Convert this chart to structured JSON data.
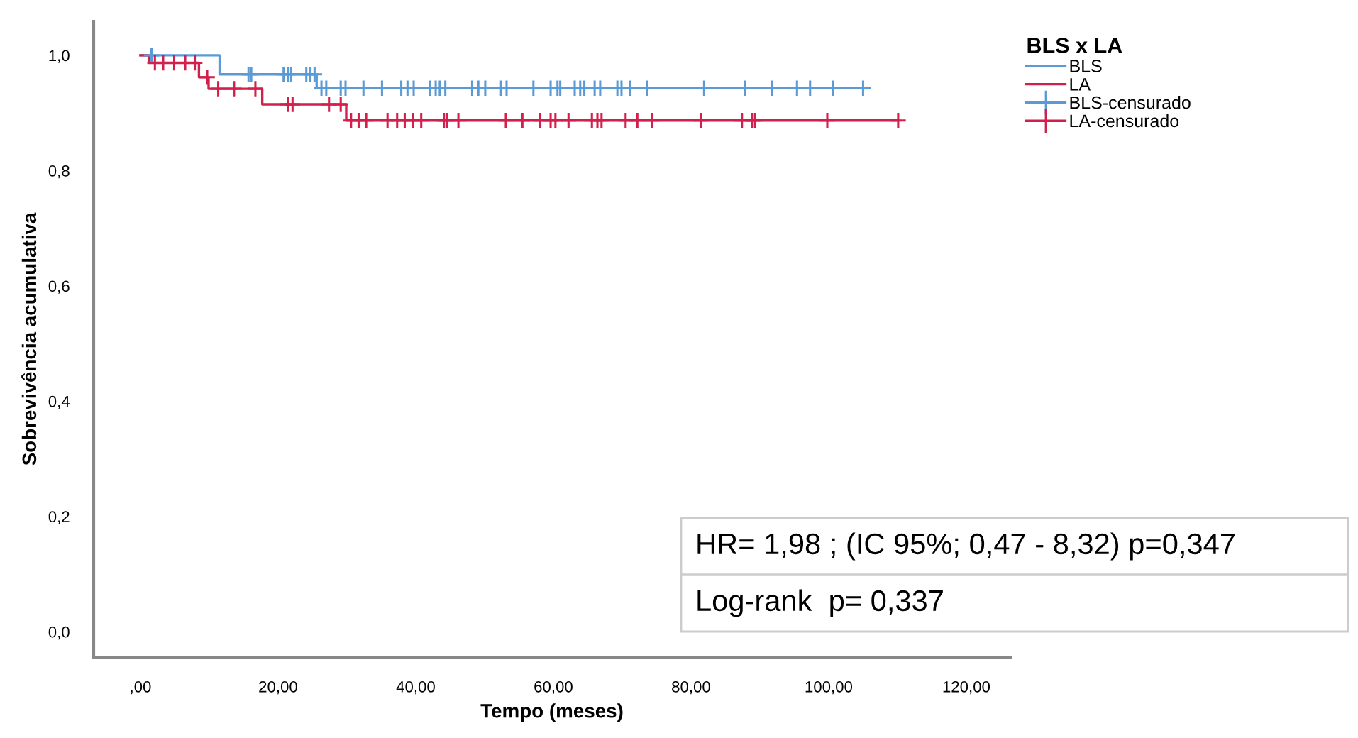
{
  "chart_data": {
    "type": "step",
    "xlabel": "Tempo (meses)",
    "ylabel": "Sobrevivência acumulativa",
    "legend_title": "BLS x LA",
    "legend": "top right",
    "grid": false,
    "xlim": [
      -6.8,
      126.4
    ],
    "ylim": [
      -0.044,
      1.059
    ],
    "xticks": [
      {
        "value": 0,
        "label": ",00"
      },
      {
        "value": 20,
        "label": "20,00"
      },
      {
        "value": 40,
        "label": "40,00"
      },
      {
        "value": 60,
        "label": "60,00"
      },
      {
        "value": 80,
        "label": "80,00"
      },
      {
        "value": 100,
        "label": "100,00"
      },
      {
        "value": 120,
        "label": "120,00"
      }
    ],
    "yticks": [
      {
        "value": 0,
        "label": "0,0"
      },
      {
        "value": 0.2,
        "label": "0,2"
      },
      {
        "value": 0.4,
        "label": "0,4"
      },
      {
        "value": 0.6,
        "label": "0,6"
      },
      {
        "value": 0.8,
        "label": "0,8"
      },
      {
        "value": 1.0,
        "label": "1,0"
      }
    ],
    "series": [
      {
        "name": "BLS",
        "color": "#5b9bd5",
        "x": [
          0,
          11.5,
          25.6,
          105
        ],
        "values": [
          1,
          0.967,
          0.943,
          0.943
        ]
      },
      {
        "name": "LA",
        "color": "#d21f4b",
        "x": [
          0,
          1.2,
          8.5,
          9.9,
          17.7,
          29.9,
          110.1
        ],
        "values": [
          1,
          0.987,
          0.962,
          0.942,
          0.915,
          0.887,
          0.887
        ]
      },
      {
        "name": "BLS-censurado",
        "type": "scatter",
        "marker": "cross",
        "color": "#5b9bd5",
        "x": [
          1.6,
          15.7,
          16.1,
          20.8,
          21.4,
          21.9,
          24.1,
          24.7,
          25.3,
          26.3,
          27.0,
          29.1,
          29.8,
          32.4,
          35.1,
          37.9,
          38.8,
          39.7,
          42.1,
          42.9,
          43.5,
          44.3,
          48.2,
          49.1,
          50.1,
          52.4,
          53.2,
          57.1,
          59.6,
          60.6,
          61.0,
          63.1,
          63.9,
          64.5,
          66.0,
          66.8,
          69.3,
          69.9,
          71.1,
          73.6,
          81.9,
          87.8,
          91.8,
          95.4,
          97.3,
          100.6,
          105.0
        ],
        "values": [
          1,
          0.967,
          0.967,
          0.967,
          0.967,
          0.967,
          0.967,
          0.967,
          0.967,
          0.943,
          0.943,
          0.943,
          0.943,
          0.943,
          0.943,
          0.943,
          0.943,
          0.943,
          0.943,
          0.943,
          0.943,
          0.943,
          0.943,
          0.943,
          0.943,
          0.943,
          0.943,
          0.943,
          0.943,
          0.943,
          0.943,
          0.943,
          0.943,
          0.943,
          0.943,
          0.943,
          0.943,
          0.943,
          0.943,
          0.943,
          0.943,
          0.943,
          0.943,
          0.943,
          0.943,
          0.943,
          0.943
        ]
      },
      {
        "name": "LA-censurado",
        "type": "scatter",
        "marker": "cross",
        "color": "#d21f4b",
        "x": [
          2.1,
          3.3,
          4.9,
          6.5,
          7.9,
          9.7,
          11.3,
          13.6,
          16.7,
          21.4,
          22.1,
          27.4,
          29.1,
          30.6,
          31.7,
          32.8,
          35.9,
          37.3,
          38.4,
          39.6,
          40.8,
          44.1,
          44.5,
          46.2,
          53.1,
          55.5,
          58.1,
          59.6,
          60.3,
          62.2,
          65.6,
          66.4,
          67.0,
          70.5,
          72.2,
          74.3,
          81.4,
          87.4,
          88.9,
          89.3,
          99.8,
          110.1
        ],
        "values": [
          0.987,
          0.987,
          0.987,
          0.987,
          0.987,
          0.962,
          0.942,
          0.942,
          0.942,
          0.915,
          0.915,
          0.915,
          0.915,
          0.887,
          0.887,
          0.887,
          0.887,
          0.887,
          0.887,
          0.887,
          0.887,
          0.887,
          0.887,
          0.887,
          0.887,
          0.887,
          0.887,
          0.887,
          0.887,
          0.887,
          0.887,
          0.887,
          0.887,
          0.887,
          0.887,
          0.887,
          0.887,
          0.887,
          0.887,
          0.887,
          0.887,
          0.887
        ]
      }
    ],
    "annotations": [
      "HR= 1,98 ; (IC 95%; 0,47 - 8,32) p=0,347",
      "Log-rank  p= 0,337"
    ]
  }
}
